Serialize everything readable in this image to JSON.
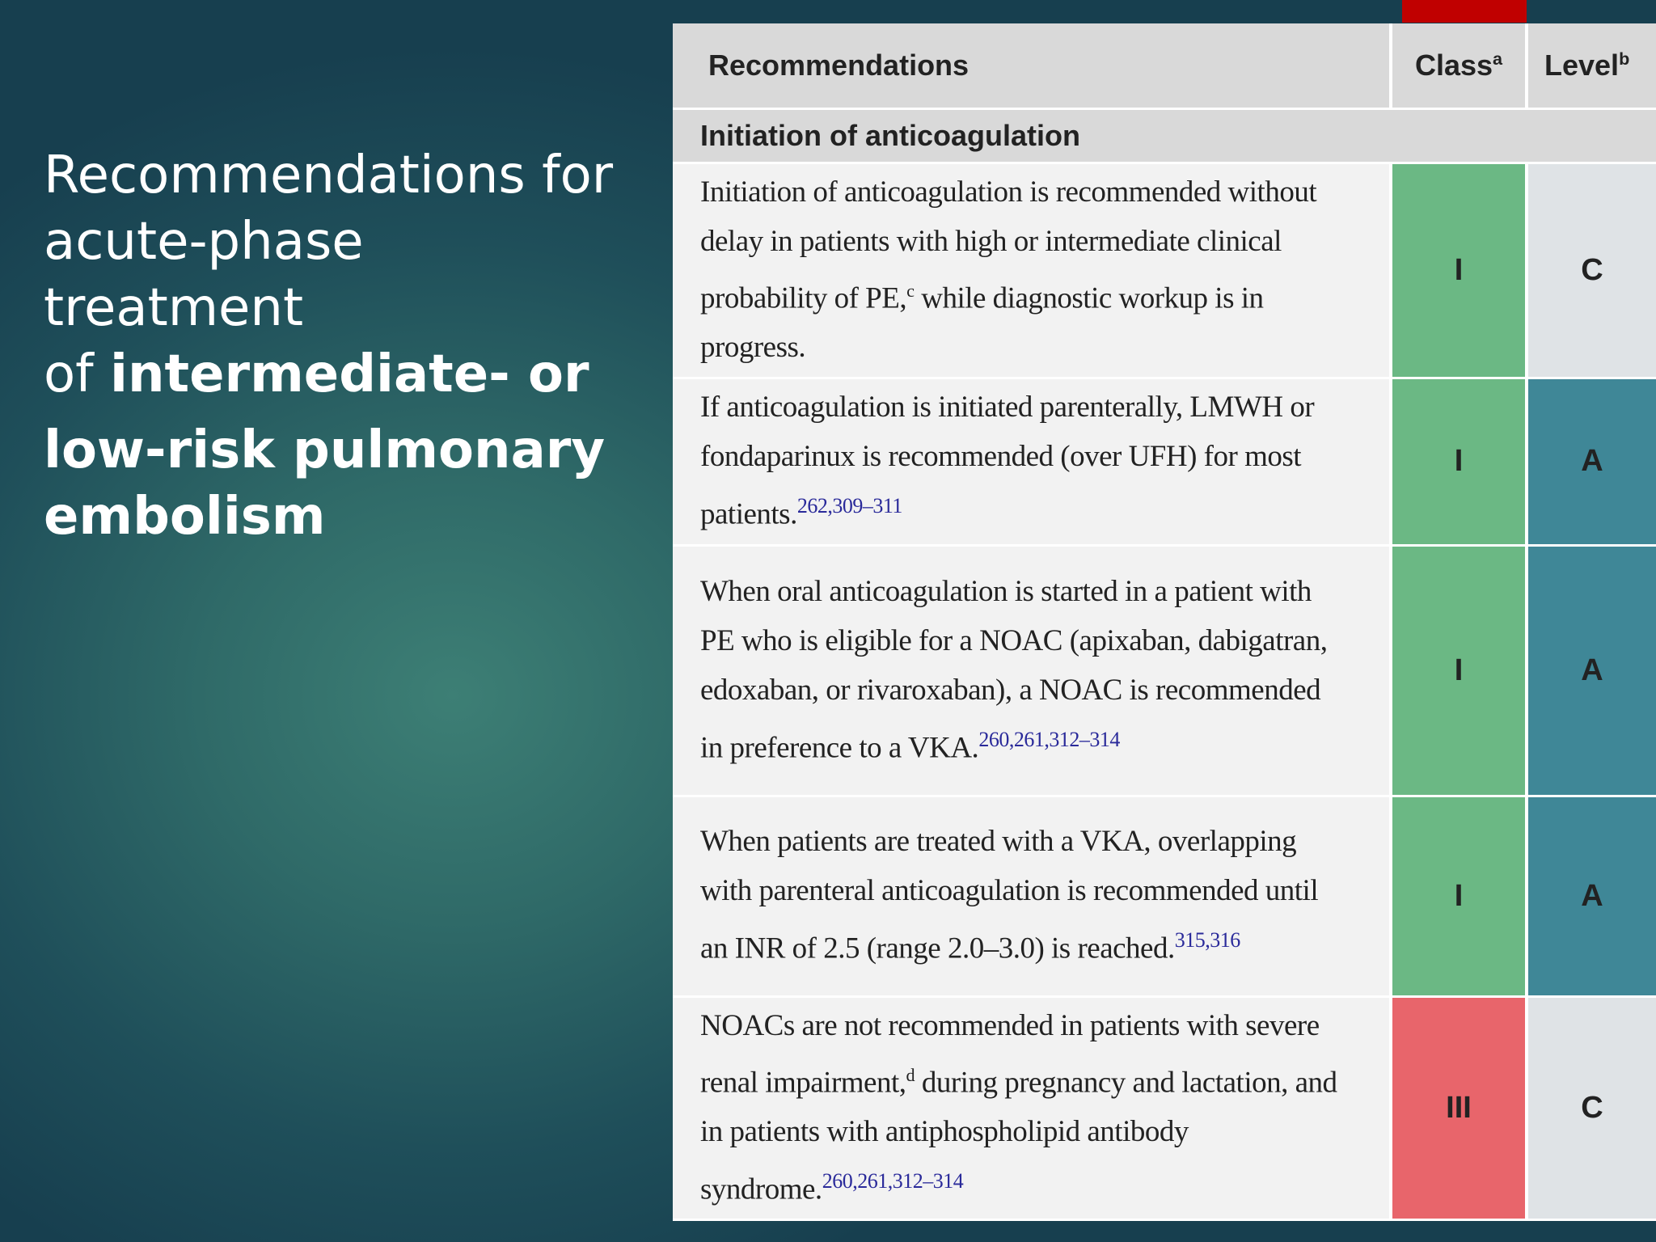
{
  "title": {
    "line1": "Recommendations for",
    "line2": "acute-phase treatment",
    "line3_prefix": "of ",
    "line3_bold": "intermediate- or",
    "line4": "low-risk pulmonary",
    "line5": "embolism"
  },
  "table": {
    "header": {
      "recommendations": "Recommendations",
      "class": "Class",
      "class_sup": "a",
      "level": "Level",
      "level_sup": "b"
    },
    "section_title": "Initiation of anticoagulation",
    "rows": [
      {
        "text": "Initiation of anticoagulation is recommended without delay in patients with high or intermediate clinical probability of PE,",
        "sup_note": "c",
        "text_after": " while diagnostic workup is in progress.",
        "refs": "",
        "class": "I",
        "level": "C",
        "class_color": "#6bb884",
        "level_color": "#dfe3e6"
      },
      {
        "text": "If anticoagulation is initiated parenterally, LMWH or fondaparinux is recommended (over UFH) for most patients.",
        "sup_note": "",
        "text_after": "",
        "refs": "262,309–311",
        "class": "I",
        "level": "A",
        "class_color": "#6bb884",
        "level_color": "#3f8797"
      },
      {
        "text": "When oral anticoagulation is started in a patient with PE who is eligible for a NOAC (apixaban, dabigatran, edoxaban, or rivaroxaban), a NOAC is recommended in preference to a VKA.",
        "sup_note": "",
        "text_after": "",
        "refs": "260,261,312–314",
        "class": "I",
        "level": "A",
        "class_color": "#6bb884",
        "level_color": "#3f8797"
      },
      {
        "text": "When patients are treated with a VKA, overlapping with parenteral anticoagulation is recommended until an INR of 2.5 (range 2.0–3.0) is reached.",
        "sup_note": "",
        "text_after": "",
        "refs": "315,316",
        "class": "I",
        "level": "A",
        "class_color": "#6bb884",
        "level_color": "#3f8797"
      },
      {
        "text": "NOACs are not recommended in patients with severe renal impairment,",
        "sup_note": "d",
        "text_after": " during pregnancy and lactation, and in patients with antiphospholipid antibody syndrome.",
        "refs": "260,261,312–314",
        "class": "III",
        "level": "C",
        "class_color": "#e8656b",
        "level_color": "#dfe3e6"
      }
    ]
  },
  "colors": {
    "accent": "#c00000",
    "background": "#2f6a68"
  }
}
